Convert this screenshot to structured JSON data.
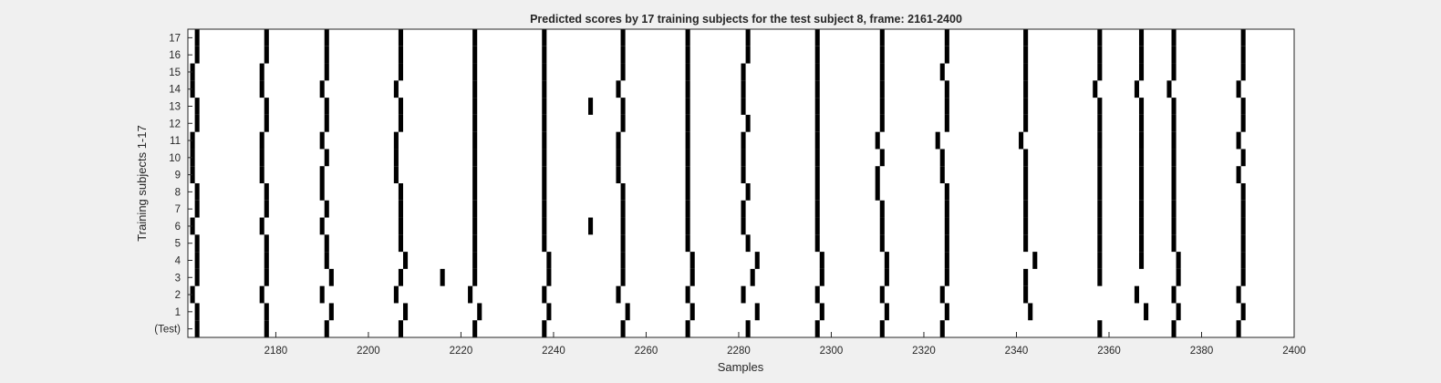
{
  "chart_data": {
    "type": "heatmap",
    "title": "Predicted scores by 17 training subjects for the test subject 8, frame: 2161-2400",
    "xlabel": "Samples",
    "ylabel": "Training subjects 1-17",
    "xlim": [
      2161,
      2400
    ],
    "x_ticks": [
      2180,
      2200,
      2220,
      2240,
      2260,
      2280,
      2300,
      2320,
      2340,
      2360,
      2380,
      2400
    ],
    "rows": [
      "(Test)",
      "1",
      "2",
      "3",
      "4",
      "5",
      "6",
      "7",
      "8",
      "9",
      "10",
      "11",
      "12",
      "13",
      "14",
      "15",
      "16",
      "17"
    ],
    "colors": {
      "mark": "#000000",
      "background": "#ffffff"
    },
    "series": [
      {
        "name": "(Test)",
        "x": [
          2163,
          2178,
          2191,
          2207,
          2223,
          2238,
          2255,
          2269,
          2282,
          2297,
          2311,
          2324,
          2358,
          2374,
          2388
        ]
      },
      {
        "name": "1",
        "x": [
          2163,
          2178,
          2192,
          2208,
          2224,
          2239,
          2256,
          2270,
          2284,
          2298,
          2312,
          2325,
          2343,
          2368,
          2375,
          2389
        ]
      },
      {
        "name": "2",
        "x": [
          2162,
          2177,
          2190,
          2206,
          2222,
          2238,
          2254,
          2269,
          2281,
          2297,
          2311,
          2324,
          2342,
          2366,
          2374,
          2388
        ]
      },
      {
        "name": "3",
        "x": [
          2163,
          2178,
          2192,
          2207,
          2216,
          2223,
          2239,
          2255,
          2270,
          2283,
          2298,
          2312,
          2325,
          2342,
          2358,
          2375,
          2389
        ]
      },
      {
        "name": "4",
        "x": [
          2163,
          2178,
          2191,
          2208,
          2223,
          2239,
          2255,
          2270,
          2284,
          2298,
          2312,
          2325,
          2344,
          2358,
          2367,
          2375,
          2389
        ]
      },
      {
        "name": "5",
        "x": [
          2163,
          2178,
          2191,
          2207,
          2223,
          2238,
          2255,
          2269,
          2282,
          2297,
          2311,
          2325,
          2342,
          2358,
          2367,
          2374,
          2389
        ]
      },
      {
        "name": "6",
        "x": [
          2162,
          2177,
          2190,
          2207,
          2223,
          2238,
          2248,
          2255,
          2269,
          2281,
          2297,
          2311,
          2325,
          2342,
          2358,
          2367,
          2374,
          2389
        ]
      },
      {
        "name": "7",
        "x": [
          2163,
          2178,
          2191,
          2207,
          2223,
          2238,
          2255,
          2269,
          2281,
          2297,
          2311,
          2325,
          2342,
          2358,
          2367,
          2374,
          2389
        ]
      },
      {
        "name": "8",
        "x": [
          2163,
          2178,
          2190,
          2207,
          2223,
          2238,
          2255,
          2269,
          2282,
          2297,
          2310,
          2325,
          2342,
          2358,
          2367,
          2374,
          2389
        ]
      },
      {
        "name": "9",
        "x": [
          2162,
          2177,
          2190,
          2206,
          2223,
          2238,
          2254,
          2269,
          2281,
          2297,
          2310,
          2324,
          2342,
          2358,
          2367,
          2374,
          2388
        ]
      },
      {
        "name": "10",
        "x": [
          2162,
          2177,
          2191,
          2206,
          2223,
          2238,
          2254,
          2269,
          2281,
          2297,
          2311,
          2324,
          2342,
          2358,
          2367,
          2374,
          2389
        ]
      },
      {
        "name": "11",
        "x": [
          2162,
          2177,
          2190,
          2206,
          2223,
          2238,
          2254,
          2269,
          2281,
          2297,
          2310,
          2323,
          2341,
          2358,
          2367,
          2374,
          2388
        ]
      },
      {
        "name": "12",
        "x": [
          2163,
          2178,
          2191,
          2207,
          2223,
          2238,
          2255,
          2269,
          2282,
          2297,
          2311,
          2325,
          2342,
          2358,
          2367,
          2374,
          2389
        ]
      },
      {
        "name": "13",
        "x": [
          2163,
          2178,
          2191,
          2207,
          2223,
          2238,
          2248,
          2255,
          2269,
          2281,
          2297,
          2311,
          2325,
          2342,
          2358,
          2367,
          2374,
          2389
        ]
      },
      {
        "name": "14",
        "x": [
          2162,
          2177,
          2190,
          2206,
          2223,
          2238,
          2254,
          2269,
          2281,
          2297,
          2311,
          2325,
          2342,
          2357,
          2366,
          2373,
          2388
        ]
      },
      {
        "name": "15",
        "x": [
          2162,
          2177,
          2191,
          2207,
          2223,
          2238,
          2255,
          2269,
          2281,
          2297,
          2311,
          2324,
          2342,
          2358,
          2367,
          2374,
          2389
        ]
      },
      {
        "name": "16",
        "x": [
          2163,
          2178,
          2191,
          2207,
          2223,
          2238,
          2255,
          2269,
          2282,
          2297,
          2311,
          2325,
          2342,
          2358,
          2367,
          2374,
          2389
        ]
      },
      {
        "name": "17",
        "x": [
          2163,
          2178,
          2191,
          2207,
          2223,
          2238,
          2255,
          2269,
          2282,
          2297,
          2311,
          2325,
          2342,
          2358,
          2367,
          2374,
          2389
        ]
      }
    ]
  }
}
